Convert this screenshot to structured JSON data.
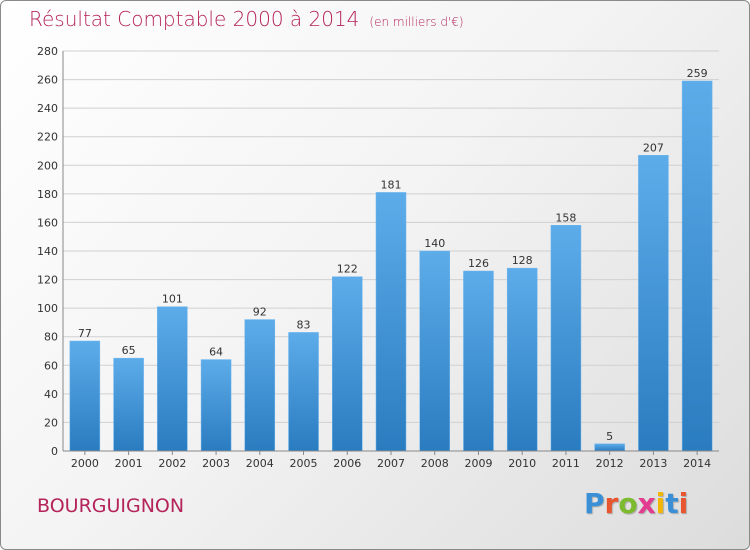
{
  "header": {
    "title": "Résultat Comptable 2000 à 2014",
    "unit": "(en milliers d'€)"
  },
  "footer": {
    "location": "BOURGUIGNON",
    "brand": "Proxiti",
    "brand_letters": [
      "P",
      "r",
      "o",
      "x",
      "i",
      "t",
      "i"
    ],
    "brand_colors": [
      "#3a8fd6",
      "#e8552f",
      "#7dbb2e",
      "#e33b8f",
      "#f2b705",
      "#3a8fd6",
      "#e8552f"
    ]
  },
  "colors": {
    "title": "#b4235a",
    "bar_top": "#5dacea",
    "bar_bottom": "#2a7cc0",
    "grid": "#d0d0d0",
    "axis_text": "#333333"
  },
  "chart_data": {
    "type": "bar",
    "title": "Résultat Comptable 2000 à 2014",
    "subtitle": "(en milliers d'€)",
    "xlabel": "",
    "ylabel": "",
    "categories": [
      "2000",
      "2001",
      "2002",
      "2003",
      "2004",
      "2005",
      "2006",
      "2007",
      "2008",
      "2009",
      "2010",
      "2011",
      "2012",
      "2013",
      "2014"
    ],
    "values": [
      77,
      65,
      101,
      64,
      92,
      83,
      122,
      181,
      140,
      126,
      128,
      158,
      5,
      207,
      259
    ],
    "ylim": [
      0,
      280
    ],
    "yticks": [
      0,
      20,
      40,
      60,
      80,
      100,
      120,
      140,
      160,
      180,
      200,
      220,
      240,
      260,
      280
    ],
    "grid": true,
    "legend": "none"
  }
}
